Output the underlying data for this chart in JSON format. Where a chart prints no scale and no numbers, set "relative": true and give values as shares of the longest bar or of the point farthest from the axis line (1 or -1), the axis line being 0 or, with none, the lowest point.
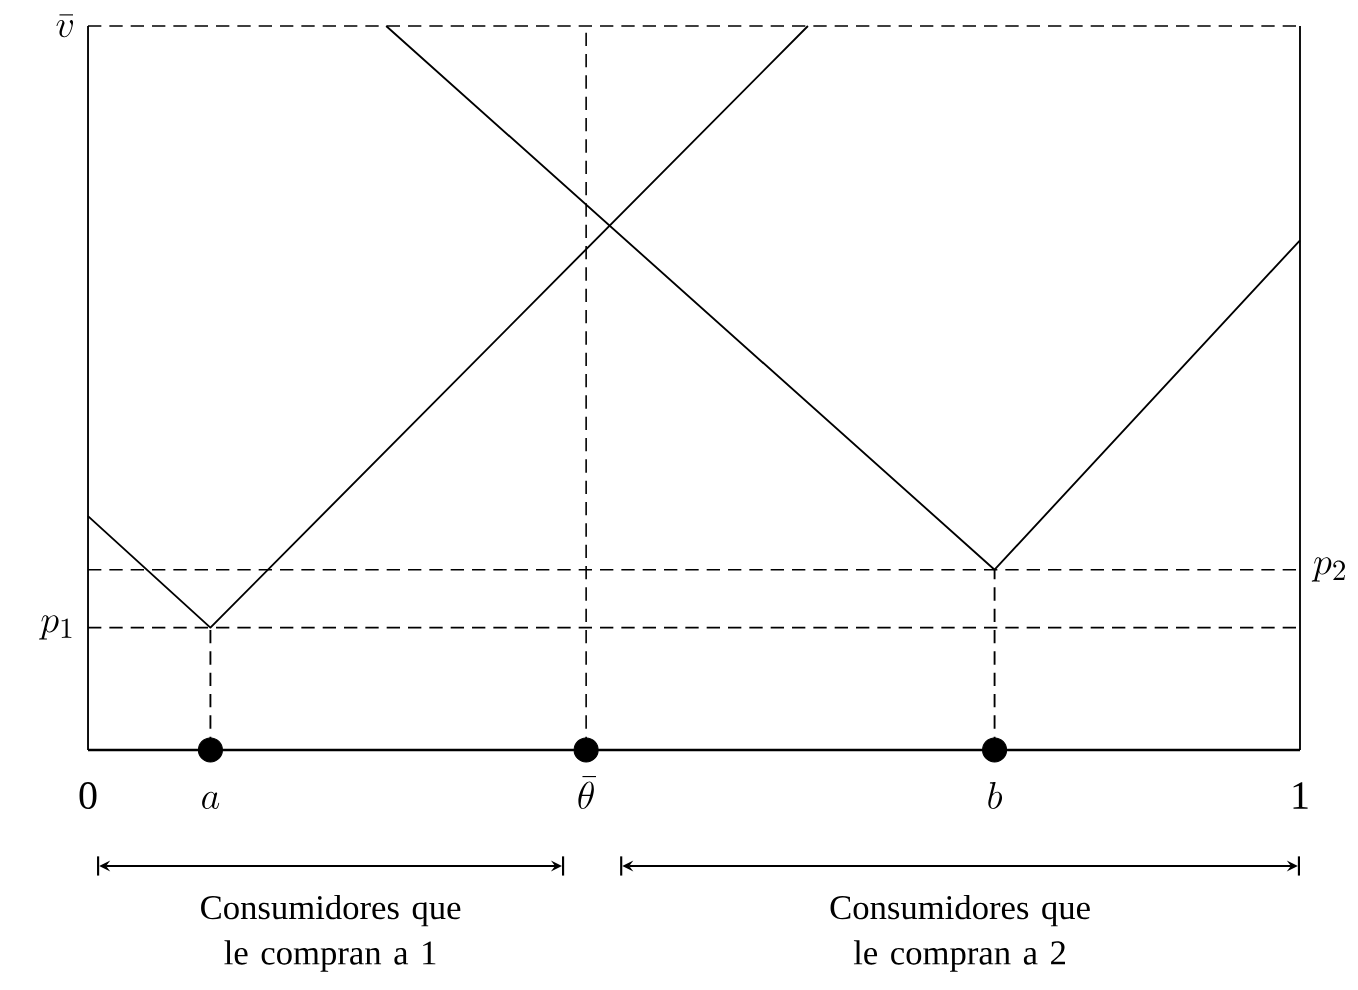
{
  "chart_data": {
    "type": "line",
    "relative": true,
    "xlim": [
      0,
      1
    ],
    "xticks": [
      0,
      1
    ],
    "series": [
      {
        "type": "line",
        "color": "#000000",
        "line_style": "solid",
        "x": [
          0,
          0.101,
          0.594
        ],
        "values": [
          0.323,
          0.169,
          1
        ]
      },
      {
        "type": "line",
        "color": "#000000",
        "line_style": "solid",
        "x": [
          0.246,
          0.748,
          1
        ],
        "values": [
          1,
          0.249,
          0.704
        ]
      },
      {
        "type": "line",
        "color": "#000000",
        "line_style": "dashed",
        "x": [
          0.101,
          0.101
        ],
        "values": [
          0,
          0.169
        ]
      },
      {
        "type": "line",
        "color": "#000000",
        "line_style": "dashed",
        "x": [
          0.748,
          0.748
        ],
        "values": [
          0,
          0.249
        ]
      },
      {
        "type": "scatter",
        "color": "#000000",
        "marker": "circle",
        "x": [
          0.101,
          0.411,
          0.748
        ],
        "values": [
          0,
          0,
          0
        ]
      }
    ],
    "ref_lines": [
      {
        "axis": "y",
        "value": 1,
        "label": "\\bar{v}",
        "line_style": "dashed"
      },
      {
        "axis": "y",
        "value": 0.169,
        "label": "p_1",
        "line_style": "dashed"
      },
      {
        "axis": "y",
        "value": 0.249,
        "label": "p_2",
        "line_style": "dashed"
      },
      {
        "axis": "x",
        "value": 0.411,
        "line_style": "dashed"
      }
    ],
    "annotations": [
      {
        "text": "a",
        "x": 0.101,
        "y": 0
      },
      {
        "text": "\\bar{\\theta}",
        "x": 0.411,
        "y": 0
      },
      {
        "text": "b",
        "x": 0.748,
        "y": 0
      },
      "Consumidores que le compran a 1",
      "Consumidores que le compran a 2"
    ]
  }
}
